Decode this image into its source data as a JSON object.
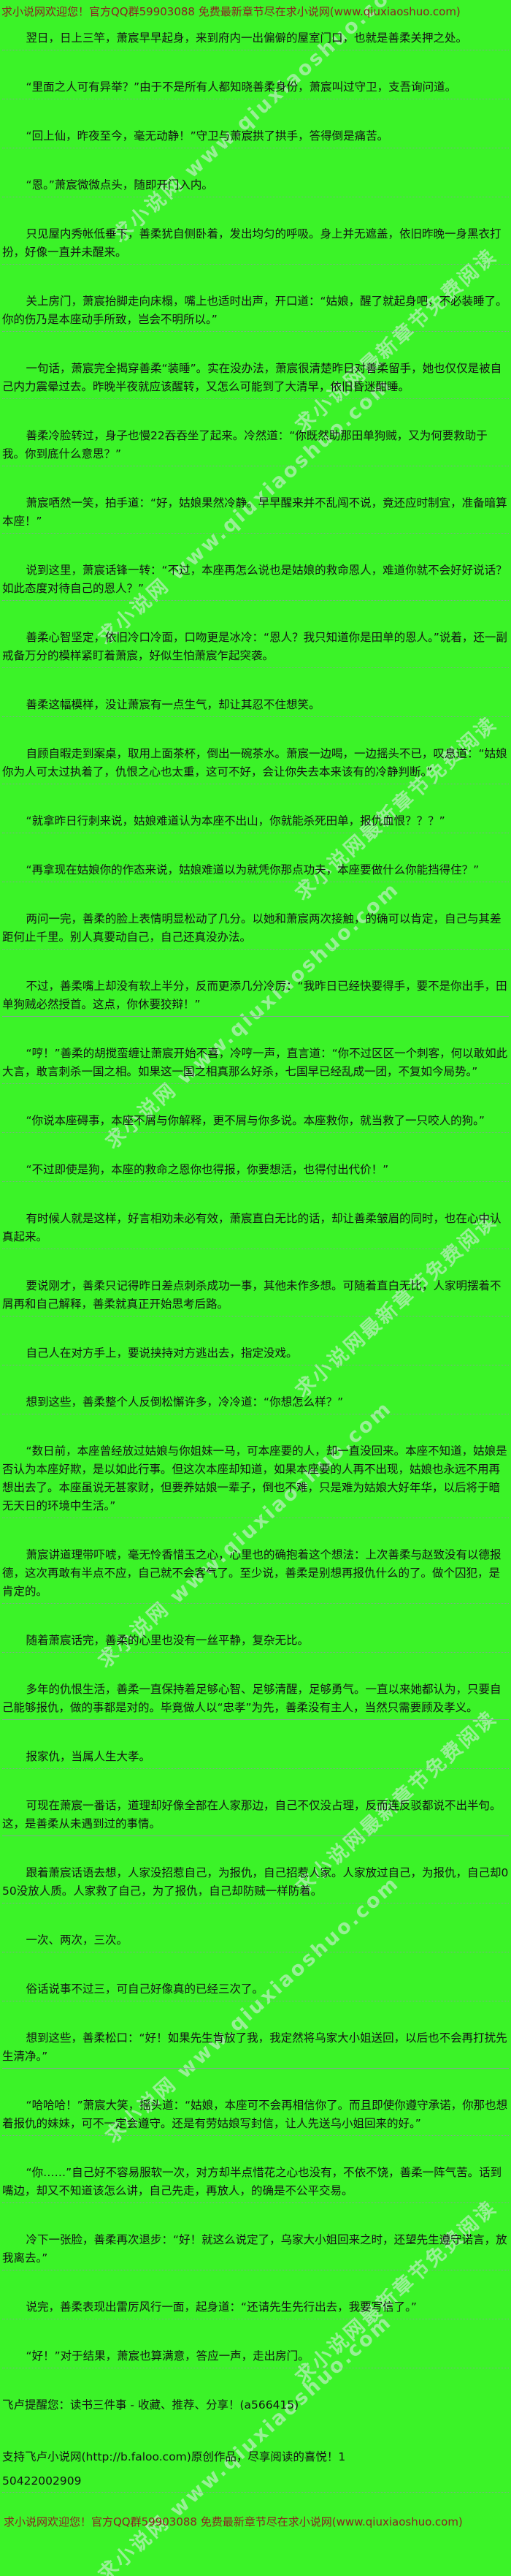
{
  "banner": {
    "top": "求小说网欢迎您！官方QQ群59903088 免费最新章节尽在求小说网(www.qiuxiaoshuo.com)",
    "bottom": "求小说网欢迎您！官方QQ群59903088 免费最新章节尽在求小说网(www.qiuxiaoshuo.com)"
  },
  "watermark": {
    "site": "求小说网 www.qiuxiaoshuo.com",
    "slogan": "求小说网最新章节免费阅读"
  },
  "content": {
    "paragraphs": [
      {
        "text": "翌日，日上三竿，萧宸早早起身，来到府内一出偏僻的屋室门口，也就是善柔关押之处。",
        "sep": "dotted"
      },
      {
        "text": "“里面之人可有异举？”由于不是所有人都知晓善柔身份，萧宸叫过守卫，支吾询问道。",
        "sep": "dotted"
      },
      {
        "text": "“回上仙，昨夜至今，毫无动静！”守卫与萧宸拱了拱手，答得倒是痛苦。",
        "sep": "dotted"
      },
      {
        "text": "“恩。”萧宸微微点头，随即开门入内。",
        "sep": "dotted"
      },
      {
        "text": "只见屋内秀帐低垂下，善柔犹自侧卧着，发出均匀的呼吸。身上并无遮盖，依旧昨晚一身黑衣打扮，好像一直并未醒来。",
        "sep": "dotted"
      },
      {
        "text": "关上房门，萧宸抬脚走向床榻，嘴上也适时出声，开口道：“姑娘，醒了就起身吧，不必装睡了。你的伤乃是本座动手所致，岂会不明所以。”",
        "sep": "dotted"
      },
      {
        "text": "一句话，萧宸完全揭穿善柔“装睡”。实在没办法，萧宸很清楚昨日对善柔留手，她也仅仅是被自己内力震晕过去。昨晚半夜就应该醒转，又怎么可能到了大清早，依旧昏迷酣睡。",
        "sep": "dotted"
      },
      {
        "text": "善柔冷脸转过，身子也慢22吞吞坐了起来。冷然道：“你既然助那田单狗贼，又为何要救助于我。你到底什么意思？”",
        "sep": "dotted"
      },
      {
        "text": "萧宸哂然一笑，拍手道：“好，姑娘果然冷静。早早醒来并不乱闯不说，竟还应时制宜，准备暗算本座！”",
        "sep": "dotted"
      },
      {
        "text": "说到这里，萧宸话锋一转：“不过，本座再怎么说也是姑娘的救命恩人，难道你就不会好好说话？如此态度对待自己的恩人？”",
        "sep": "dotted"
      },
      {
        "text": "善柔心智坚定，依旧冷口冷面，口吻更是冰冷：“恩人？我只知道你是田单的恩人。”说着，还一副戒备万分的模样紧盯着萧宸，好似生怕萧宸乍起突袭。",
        "sep": "dotted"
      },
      {
        "text": "善柔这幅模样，没让萧宸有一点生气，却让其忍不住想笑。",
        "sep": "dotted"
      },
      {
        "text": "自顾自暇走到案桌，取用上面茶杯，倒出一碗茶水。萧宸一边喝，一边摇头不已，叹息道：“姑娘你为人可太过执着了，仇恨之心也太重，这可不好，会让你失去本来该有的冷静判断。”",
        "sep": "dotted"
      },
      {
        "text": "“就拿昨日行刺来说，姑娘难道认为本座不出山，你就能杀死田单，报仇血恨？？？”",
        "sep": "dotted"
      },
      {
        "text": "“再拿现在姑娘你的作态来说，姑娘难道以为就凭你那点功夫，本座要做什么你能挡得住？”",
        "sep": "dotted"
      },
      {
        "text": "两问一完，善柔的脸上表情明显松动了几分。以她和萧宸两次接触，的确可以肯定，自己与其差距何止千里。别人真要动自己，自己还真没办法。",
        "sep": "dotted"
      },
      {
        "text": "不过，善柔嘴上却没有软上半分，反而更添几分冷厉：“我昨日已经快要得手，要不是你出手，田单狗贼必然授首。这点，你休要狡辩！”",
        "sep": "solid"
      },
      {
        "text": "“哼！”善柔的胡搅蛮缠让萧宸开始不喜，冷哼一声，直言道：“你不过区区一个刺客，何以敢如此大言，敢言刺杀一国之相。如果这一国之相真那么好杀，七国早已经乱成一团，不复如今局势。”",
        "sep": "dotted"
      },
      {
        "text": "“你说本座碍事，本座不屑与你解释，更不屑与你多说。本座救你，就当救了一只咬人的狗。”",
        "sep": "dotted"
      },
      {
        "text": "“不过即使是狗，本座的救命之恩你也得报，你要想活，也得付出代价！”",
        "sep": "dotted"
      },
      {
        "text": "有时候人就是这样，好言相劝未必有效，萧宸直白无比的话，却让善柔皱眉的同时，也在心中认真起来。",
        "sep": "dotted"
      },
      {
        "text": "要说刚才，善柔只记得昨日差点刺杀成功一事，其他未作多想。可随着直白无比，人家明摆着不屑再和自己解释，善柔就真正开始思考后路。",
        "sep": "dotted"
      },
      {
        "text": "自己人在对方手上，要说挟持对方逃出去，指定没戏。",
        "sep": "dotted"
      },
      {
        "text": "想到这些，善柔整个人反倒松懈许多，冷冷道：“你想怎么样？”",
        "sep": "dotted"
      },
      {
        "text": "“数日前，本座曾经放过姑娘与你姐妹一马，可本座要的人，却一直没回来。本座不知道，姑娘是否认为本座好欺，是以如此行事。但这次本座却知道，如果本座要的人再不出现，姑娘也永远不用再想出去了。本座虽说无甚家财，但要养姑娘一辈子，倒也不难，只是难为姑娘大好年华，以后将于暗无天日的环境中生活。”",
        "sep": "dotted"
      },
      {
        "text": "萧宸讲道理带吓唬，毫无怜香惜玉之心，心里也的确抱着这个想法：上次善柔与赵致没有以德报德，这次再敢有半点不应，自己就不会客气了。至少说，善柔是别想再报仇什么的了。做个囚犯，是肯定的。",
        "sep": "dotted"
      },
      {
        "text": "随着萧宸话完，善柔的心里也没有一丝平静，复杂无比。",
        "sep": "dotted"
      },
      {
        "text": "多年的仇恨生活，善柔一直保持着足够心智、足够清醒，足够勇气。一直以来她都认为，只要自己能够报仇，做的事都是对的。毕竟做人以“忠孝”为先，善柔没有主人，当然只需要顾及孝义。",
        "sep": "solid"
      },
      {
        "text": "报家仇，当属人生大孝。",
        "sep": "dotted"
      },
      {
        "text": "可现在萧宸一番话，道理却好像全部在人家那边，自己不仅没占理，反而连反驳都说不出半句。这，是善柔从未遇到过的事情。",
        "sep": "solid"
      },
      {
        "text": "跟着萧宸话语去想，人家没招惹自己，为报仇，自己招惹人家。人家放过自己，为报仇，自己却050没放人质。人家救了自己，为了报仇，自己却防贼一样防着。",
        "sep": "dotted"
      },
      {
        "text": "一次、两次，三次。",
        "sep": "dotted"
      },
      {
        "text": "俗话说事不过三，可自己好像真的已经三次了。",
        "sep": "dotted"
      },
      {
        "text": "想到这些，善柔松口：“好！如果先生肯放了我，我定然将乌家大小姐送回，以后也不会再打扰先生清净。”",
        "sep": "solid"
      },
      {
        "text": "“哈哈哈！”萧宸大笑，摇头道：“姑娘，本座可不会再相信你了。而且即使你遵守承诺，你那也想着报仇的妹妹，可不一定会遵守。还是有劳姑娘写封信，让人先送乌小姐回来的好。”",
        "sep": "dotted"
      },
      {
        "text": "“你……”自己好不容易服软一次，对方却半点惜花之心也没有，不依不饶，善柔一阵气苦。话到嘴边，却又不知道该怎么讲，自己先走，再放人，的确是不公平交易。",
        "sep": "dotted"
      },
      {
        "text": "冷下一张脸，善柔再次退步：“好！就这么说定了，乌家大小姐回来之时，还望先生遵守诺言，放我离去。”",
        "sep": "dotted"
      },
      {
        "text": "说完，善柔表现出雷厉风行一面，起身道：“还请先生先行出去，我要写信了。”",
        "sep": "dotted"
      },
      {
        "text": "“好！”对于结果，萧宸也算满意，答应一声，走出房门。",
        "sep": "dotted"
      }
    ]
  },
  "footer": {
    "reminder": "飞卢提醒您：读书三件事 - 收藏、推荐、分享！(a566415)",
    "support": "支持飞卢小说网(http://b.faloo.com)原创作品，尽享阅读的喜悦！1",
    "book_id": "50422002909"
  },
  "colors": {
    "background": "#3BF328",
    "body_text": "#141414",
    "banner_text": "#8B2222",
    "separator": "#8f9aa0",
    "watermark": "#e6ecf2"
  }
}
